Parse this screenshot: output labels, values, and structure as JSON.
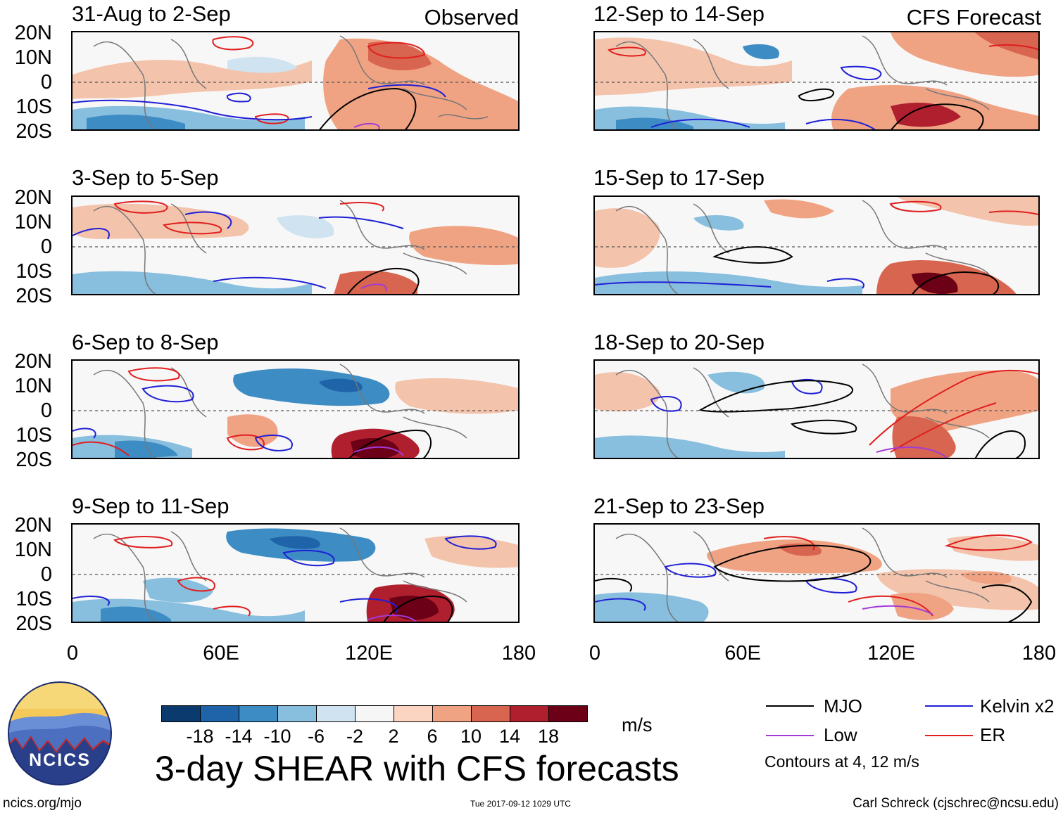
{
  "panels": [
    {
      "title": "31-Aug to 2-Sep",
      "source": "Observed"
    },
    {
      "title": "12-Sep to 14-Sep",
      "source": "CFS Forecast"
    },
    {
      "title": "3-Sep to 5-Sep"
    },
    {
      "title": "15-Sep to 17-Sep"
    },
    {
      "title": "6-Sep to 8-Sep"
    },
    {
      "title": "18-Sep to 20-Sep"
    },
    {
      "title": "9-Sep to 11-Sep"
    },
    {
      "title": "21-Sep to 23-Sep"
    }
  ],
  "lat_labels": [
    "20N",
    "10N",
    "0",
    "10S",
    "20S"
  ],
  "lon_labels": [
    "0",
    "60E",
    "120E",
    "180"
  ],
  "colorbar": {
    "labels": [
      "-18",
      "-14",
      "-10",
      "-6",
      "-2",
      "2",
      "6",
      "10",
      "14",
      "18"
    ],
    "colors": [
      "#0a3a6e",
      "#1f63a8",
      "#3d8cc4",
      "#88bede",
      "#cfe3f0",
      "#f6f6f6",
      "#fbd5c2",
      "#f0a383",
      "#d8654f",
      "#b01f2e",
      "#6b0016"
    ],
    "units": "m/s"
  },
  "main_title": "3-day SHEAR with CFS forecasts",
  "legend": {
    "items": [
      {
        "label": "MJO",
        "color": "#000000"
      },
      {
        "label": "Kelvin x2",
        "color": "#1f1fd6"
      },
      {
        "label": "Low",
        "color": "#a23bd6"
      },
      {
        "label": "ER",
        "color": "#e01f1f"
      }
    ],
    "note": "Contours at 4, 12 m/s"
  },
  "logo_text": "NCICS",
  "footer": {
    "url": "ncics.org/mjo",
    "timestamp": "Tue 2017-09-12 1029 UTC",
    "credit": "Carl Schreck (cjschrec@ncsu.edu)"
  }
}
